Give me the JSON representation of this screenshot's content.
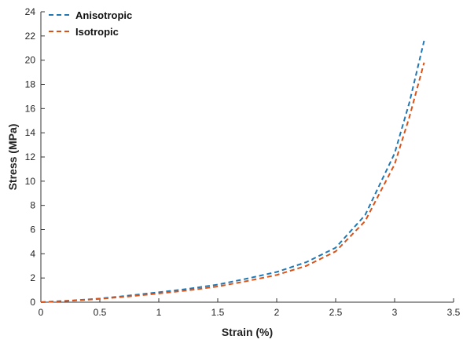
{
  "chart_data": {
    "type": "line",
    "title": "",
    "xlabel": "Strain (%)",
    "ylabel": "Stress (MPa)",
    "xlim": [
      0,
      3.5
    ],
    "ylim": [
      0,
      24
    ],
    "xticks": [
      "0",
      "0.5",
      "1",
      "1.5",
      "2",
      "2.5",
      "3",
      "3.5"
    ],
    "yticks": [
      "0",
      "2",
      "4",
      "6",
      "8",
      "10",
      "12",
      "14",
      "16",
      "18",
      "20",
      "22",
      "24"
    ],
    "grid": false,
    "legend_position": "top-left",
    "series": [
      {
        "name": "Anisotropic",
        "color": "#1f77b4",
        "style": "dashed",
        "x": [
          0,
          0.25,
          0.5,
          0.75,
          1,
          1.25,
          1.5,
          1.75,
          2,
          2.25,
          2.5,
          2.75,
          3,
          3.125,
          3.25
        ],
        "y": [
          0,
          0.13,
          0.3,
          0.55,
          0.82,
          1.1,
          1.45,
          1.95,
          2.5,
          3.3,
          4.5,
          7.2,
          12.3,
          16.5,
          21.6
        ]
      },
      {
        "name": "Isotropic",
        "color": "#d95319",
        "style": "dashed",
        "x": [
          0,
          0.25,
          0.5,
          0.75,
          1,
          1.25,
          1.5,
          1.75,
          2,
          2.25,
          2.5,
          2.75,
          3,
          3.125,
          3.25
        ],
        "y": [
          0,
          0.12,
          0.27,
          0.48,
          0.72,
          0.98,
          1.3,
          1.75,
          2.25,
          3.0,
          4.2,
          6.7,
          11.4,
          15.3,
          19.8
        ]
      }
    ]
  }
}
